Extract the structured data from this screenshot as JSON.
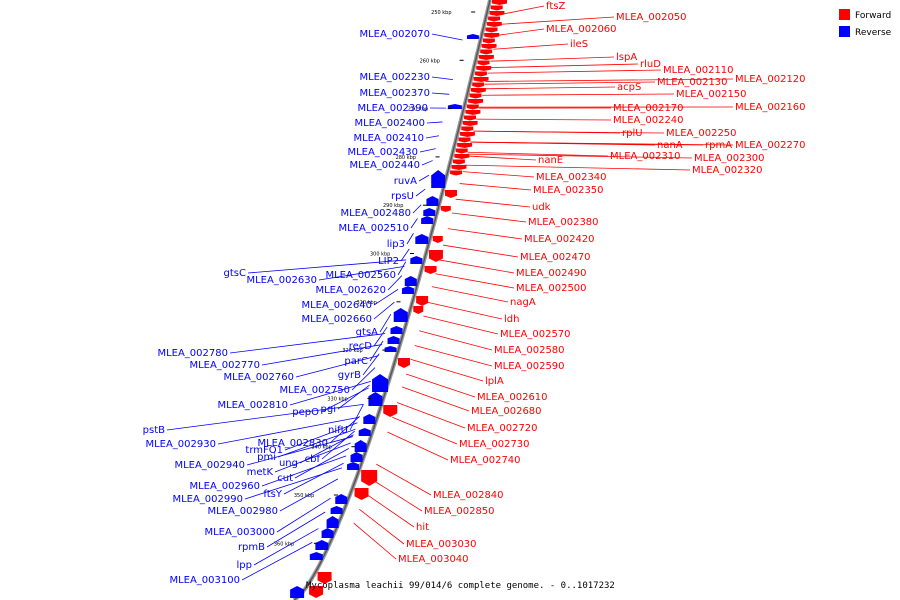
{
  "caption": "Mycoplasma leachii 99/014/6 complete genome. - 0..1017232",
  "legend": [
    {
      "label": "Forward",
      "color": "#ff0000"
    },
    {
      "label": "Reverse",
      "color": "#0000ff"
    }
  ],
  "ticks": [
    {
      "label": "250 kbp",
      "kbp": 250
    },
    {
      "label": "260 kbp",
      "kbp": 260
    },
    {
      "label": "270 kbp",
      "kbp": 270
    },
    {
      "label": "280 kbp",
      "kbp": 280
    },
    {
      "label": "290 kbp",
      "kbp": 290
    },
    {
      "label": "300 kbp",
      "kbp": 300
    },
    {
      "label": "310 kbp",
      "kbp": 310
    },
    {
      "label": "320 kbp",
      "kbp": 320
    },
    {
      "label": "330 kbp",
      "kbp": 330
    },
    {
      "label": "340 kbp",
      "kbp": 340
    },
    {
      "label": "350 kbp",
      "kbp": 350
    },
    {
      "label": "360 kbp",
      "kbp": 360
    }
  ],
  "forward_genes": [
    "ftsZ",
    "MLEA_002050",
    "MLEA_002060",
    "ileS",
    "lspA",
    "rluD",
    "MLEA_002110",
    "MLEA_002120",
    "MLEA_002130",
    "acpS",
    "MLEA_002150",
    "MLEA_002160",
    "MLEA_002170",
    "MLEA_002240",
    "rplU",
    "MLEA_002250",
    "nanA",
    "rpmA",
    "MLEA_002270",
    "MLEA_002310",
    "MLEA_002300",
    "nanE",
    "MLEA_002320",
    "MLEA_002340",
    "MLEA_002350",
    "udk",
    "MLEA_002380",
    "MLEA_002420",
    "MLEA_002470",
    "MLEA_002490",
    "MLEA_002500",
    "nagA",
    "ldh",
    "MLEA_002570",
    "MLEA_002580",
    "MLEA_002590",
    "lplA",
    "MLEA_002610",
    "MLEA_002680",
    "MLEA_002720",
    "MLEA_002730",
    "MLEA_002740",
    "MLEA_002840",
    "MLEA_002850",
    "hit",
    "MLEA_003030",
    "MLEA_003040"
  ],
  "reverse_genes": [
    "MLEA_002070",
    "MLEA_002230",
    "MLEA_002370",
    "MLEA_002390",
    "MLEA_002400",
    "MLEA_002410",
    "MLEA_002430",
    "MLEA_002440",
    "ruvA",
    "rpsU",
    "MLEA_002480",
    "MLEA_002510",
    "lip3",
    "LIP2",
    "gtsC",
    "MLEA_002630",
    "MLEA_002560",
    "MLEA_002620",
    "MLEA_002640",
    "MLEA_002660",
    "gtsA",
    "recD",
    "parC",
    "MLEA_002780",
    "MLEA_002770",
    "gyrB",
    "MLEA_002760",
    "MLEA_002750",
    "MLEA_002810",
    "pepO",
    "pgi",
    "nifU",
    "pstB",
    "MLEA_002830",
    "MLEA_002930",
    "trmFO1",
    "pmi",
    "cbf",
    "ung",
    "MLEA_002940",
    "metK",
    "cut",
    "MLEA_002960",
    "ftsY",
    "MLEA_002990",
    "MLEA_002980",
    "MLEA_003000",
    "rpmB",
    "lpp",
    "MLEA_003100"
  ]
}
